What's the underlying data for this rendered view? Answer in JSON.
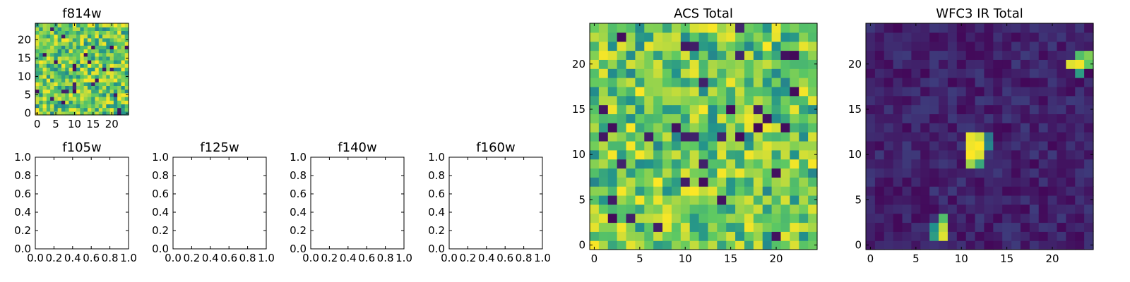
{
  "chart_data": [
    {
      "type": "heatmap",
      "title": "f814w",
      "xlabel": "",
      "ylabel": "",
      "xlim": [
        -0.5,
        24.5
      ],
      "ylim": [
        -0.5,
        24.5
      ],
      "xticks": [
        "0",
        "5",
        "10",
        "15",
        "20"
      ],
      "yticks": [
        "0",
        "5",
        "10",
        "15",
        "20"
      ],
      "grid": false,
      "colormap": "viridis",
      "shape": [
        25,
        25
      ],
      "pattern": "noise"
    },
    {
      "type": "scatter",
      "title": "f105w",
      "xlabel": "",
      "ylabel": "",
      "xlim": [
        0,
        1
      ],
      "ylim": [
        0,
        1
      ],
      "xticks": [
        "0.0",
        "0.2",
        "0.4",
        "0.6",
        "0.8",
        "1.0"
      ],
      "yticks": [
        "0.0",
        "0.2",
        "0.4",
        "0.6",
        "0.8",
        "1.0"
      ],
      "series": []
    },
    {
      "type": "scatter",
      "title": "f125w",
      "xlabel": "",
      "ylabel": "",
      "xlim": [
        0,
        1
      ],
      "ylim": [
        0,
        1
      ],
      "xticks": [
        "0.0",
        "0.2",
        "0.4",
        "0.6",
        "0.8",
        "1.0"
      ],
      "yticks": [
        "0.0",
        "0.2",
        "0.4",
        "0.6",
        "0.8",
        "1.0"
      ],
      "series": []
    },
    {
      "type": "scatter",
      "title": "f140w",
      "xlabel": "",
      "ylabel": "",
      "xlim": [
        0,
        1
      ],
      "ylim": [
        0,
        1
      ],
      "xticks": [
        "0.0",
        "0.2",
        "0.4",
        "0.6",
        "0.8",
        "1.0"
      ],
      "yticks": [
        "0.0",
        "0.2",
        "0.4",
        "0.6",
        "0.8",
        "1.0"
      ],
      "series": []
    },
    {
      "type": "scatter",
      "title": "f160w",
      "xlabel": "",
      "ylabel": "",
      "xlim": [
        0,
        1
      ],
      "ylim": [
        0,
        1
      ],
      "xticks": [
        "0.0",
        "0.2",
        "0.4",
        "0.6",
        "0.8",
        "1.0"
      ],
      "yticks": [
        "0.0",
        "0.2",
        "0.4",
        "0.6",
        "0.8",
        "1.0"
      ],
      "series": []
    },
    {
      "type": "heatmap",
      "title": "ACS Total",
      "xlabel": "",
      "ylabel": "",
      "xlim": [
        -0.5,
        24.5
      ],
      "ylim": [
        -0.5,
        24.5
      ],
      "xticks": [
        "0",
        "5",
        "10",
        "15",
        "20"
      ],
      "yticks": [
        "0",
        "5",
        "10",
        "15",
        "20"
      ],
      "grid": false,
      "colormap": "viridis",
      "shape": [
        25,
        25
      ],
      "pattern": "noise"
    },
    {
      "type": "heatmap",
      "title": "WFC3 IR Total",
      "xlabel": "",
      "ylabel": "",
      "xlim": [
        -0.5,
        24.5
      ],
      "ylim": [
        -0.5,
        24.5
      ],
      "xticks": [
        "0",
        "5",
        "10",
        "15",
        "20"
      ],
      "yticks": [
        "0",
        "5",
        "10",
        "15",
        "20"
      ],
      "grid": false,
      "colormap": "viridis",
      "shape": [
        25,
        25
      ],
      "pattern": "background-with-sources",
      "sources": [
        {
          "col": 11,
          "row": 10,
          "level": 1.0
        },
        {
          "col": 12,
          "row": 10,
          "level": 0.95
        },
        {
          "col": 11,
          "row": 11,
          "level": 0.98
        },
        {
          "col": 12,
          "row": 11,
          "level": 1.0
        },
        {
          "col": 11,
          "row": 12,
          "level": 0.97
        },
        {
          "col": 12,
          "row": 12,
          "level": 0.92
        },
        {
          "col": 12,
          "row": 9,
          "level": 0.6
        },
        {
          "col": 11,
          "row": 9,
          "level": 0.85
        },
        {
          "col": 13,
          "row": 11,
          "level": 0.45
        },
        {
          "col": 13,
          "row": 12,
          "level": 0.4
        },
        {
          "col": 8,
          "row": 1,
          "level": 0.95
        },
        {
          "col": 7,
          "row": 1,
          "level": 0.55
        },
        {
          "col": 8,
          "row": 2,
          "level": 0.9
        },
        {
          "col": 7,
          "row": 2,
          "level": 0.5
        },
        {
          "col": 8,
          "row": 3,
          "level": 0.7
        },
        {
          "col": 23,
          "row": 20,
          "level": 0.98
        },
        {
          "col": 22,
          "row": 20,
          "level": 0.95
        },
        {
          "col": 24,
          "row": 20,
          "level": 0.75
        },
        {
          "col": 23,
          "row": 19,
          "level": 0.55
        },
        {
          "col": 24,
          "row": 21,
          "level": 0.8
        },
        {
          "col": 23,
          "row": 21,
          "level": 0.7
        }
      ]
    }
  ]
}
